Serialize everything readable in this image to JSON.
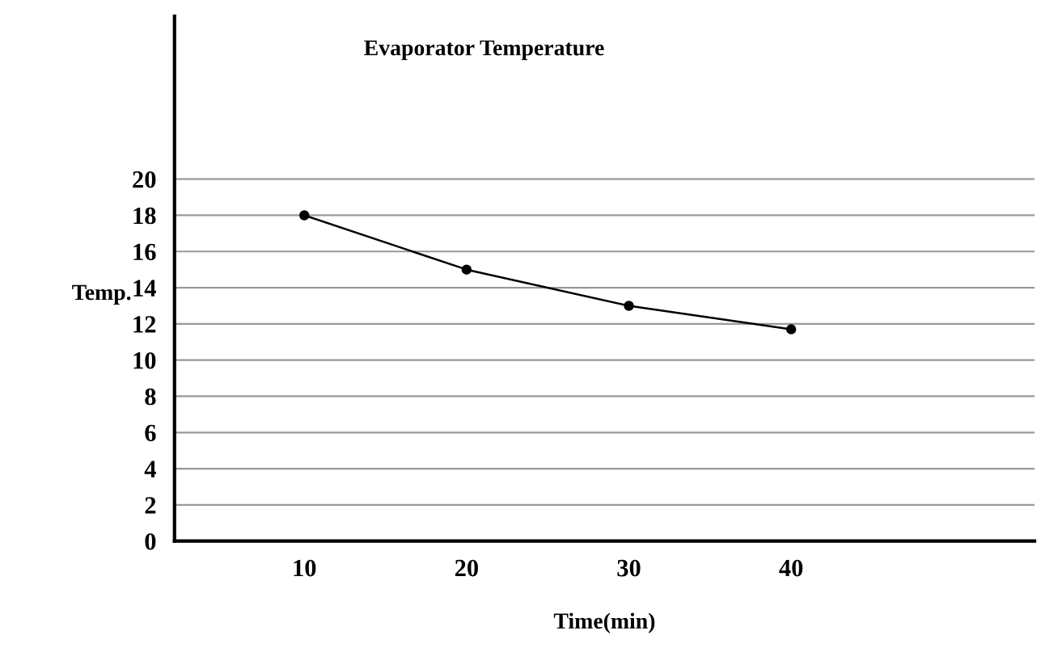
{
  "chart_data": {
    "type": "line",
    "title": "Evaporator Temperature",
    "xlabel": "Time(min)",
    "ylabel": "Temp.",
    "x": [
      10,
      20,
      30,
      40
    ],
    "series": [
      {
        "color": "#000000",
        "values": [
          18,
          15,
          13,
          11.7
        ]
      }
    ],
    "xlim": [
      2,
      55
    ],
    "xticks": [
      10,
      20,
      30,
      40
    ],
    "ylim": [
      0,
      29
    ],
    "yticks": [
      0,
      2,
      4,
      6,
      8,
      10,
      12,
      14,
      16,
      18,
      20
    ],
    "grid": "y",
    "marker": "circle",
    "line_style": "solid",
    "legend": false
  }
}
